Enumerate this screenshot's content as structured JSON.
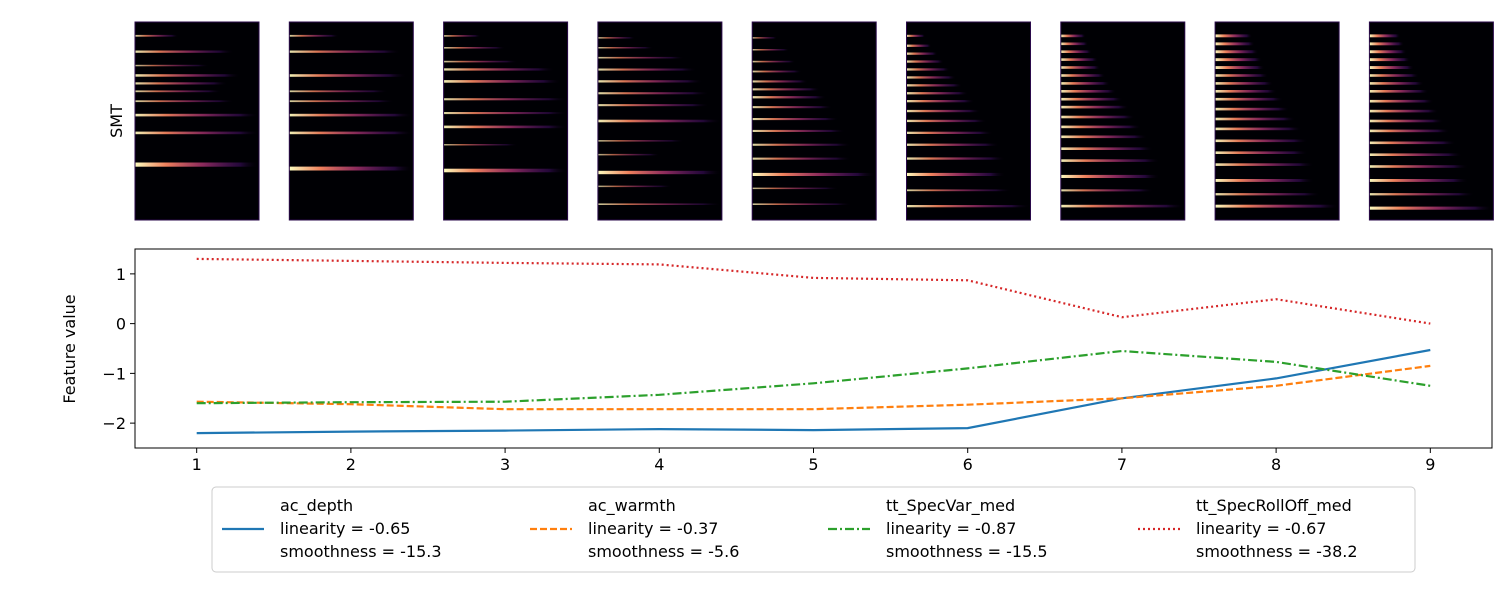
{
  "chart_data": [
    {
      "type": "heatmap",
      "ylabel": "SMT",
      "panels": [
        {
          "index": 1,
          "lines": [
            {
              "y": 0.93,
              "w": 0.35,
              "s": 0.7
            },
            {
              "y": 0.85,
              "w": 0.8,
              "s": 0.9
            },
            {
              "y": 0.78,
              "w": 0.6,
              "s": 0.5
            },
            {
              "y": 0.73,
              "w": 0.85,
              "s": 0.95
            },
            {
              "y": 0.69,
              "w": 0.75,
              "s": 0.85
            },
            {
              "y": 0.65,
              "w": 0.7,
              "s": 0.7
            },
            {
              "y": 0.6,
              "w": 0.8,
              "s": 0.7
            },
            {
              "y": 0.53,
              "w": 1.0,
              "s": 1.0
            },
            {
              "y": 0.44,
              "w": 1.0,
              "s": 1.0
            },
            {
              "y": 0.28,
              "w": 1.0,
              "s": 1.6
            }
          ]
        },
        {
          "index": 2,
          "lines": [
            {
              "y": 0.93,
              "w": 0.4,
              "s": 0.7
            },
            {
              "y": 0.85,
              "w": 0.9,
              "s": 0.9
            },
            {
              "y": 0.73,
              "w": 0.95,
              "s": 1.0
            },
            {
              "y": 0.65,
              "w": 0.8,
              "s": 0.7
            },
            {
              "y": 0.6,
              "w": 0.85,
              "s": 0.7
            },
            {
              "y": 0.53,
              "w": 1.0,
              "s": 1.0
            },
            {
              "y": 0.44,
              "w": 1.0,
              "s": 1.0
            },
            {
              "y": 0.26,
              "w": 1.0,
              "s": 1.5
            }
          ]
        },
        {
          "index": 3,
          "lines": [
            {
              "y": 0.93,
              "w": 0.3,
              "s": 0.6
            },
            {
              "y": 0.87,
              "w": 0.5,
              "s": 0.6
            },
            {
              "y": 0.8,
              "w": 0.6,
              "s": 0.6
            },
            {
              "y": 0.76,
              "w": 0.9,
              "s": 0.9
            },
            {
              "y": 0.7,
              "w": 0.95,
              "s": 1.0
            },
            {
              "y": 0.61,
              "w": 1.0,
              "s": 0.8
            },
            {
              "y": 0.54,
              "w": 1.0,
              "s": 0.8
            },
            {
              "y": 0.47,
              "w": 1.0,
              "s": 1.0
            },
            {
              "y": 0.38,
              "w": 0.6,
              "s": 0.4
            },
            {
              "y": 0.25,
              "w": 1.0,
              "s": 1.4
            }
          ]
        },
        {
          "index": 4,
          "lines": [
            {
              "y": 0.92,
              "w": 0.3,
              "s": 0.5
            },
            {
              "y": 0.87,
              "w": 0.45,
              "s": 0.5
            },
            {
              "y": 0.82,
              "w": 0.7,
              "s": 0.6
            },
            {
              "y": 0.76,
              "w": 0.8,
              "s": 0.8
            },
            {
              "y": 0.7,
              "w": 0.85,
              "s": 0.9
            },
            {
              "y": 0.64,
              "w": 0.9,
              "s": 0.8
            },
            {
              "y": 0.58,
              "w": 0.9,
              "s": 0.8
            },
            {
              "y": 0.5,
              "w": 1.0,
              "s": 1.0
            },
            {
              "y": 0.4,
              "w": 0.7,
              "s": 0.5
            },
            {
              "y": 0.33,
              "w": 0.5,
              "s": 0.4
            },
            {
              "y": 0.24,
              "w": 1.0,
              "s": 1.3
            },
            {
              "y": 0.17,
              "w": 0.6,
              "s": 0.4
            },
            {
              "y": 0.08,
              "w": 1.0,
              "s": 0.6
            }
          ]
        },
        {
          "index": 5,
          "lines": [
            {
              "y": 0.92,
              "w": 0.2,
              "s": 0.4
            },
            {
              "y": 0.86,
              "w": 0.3,
              "s": 0.5
            },
            {
              "y": 0.8,
              "w": 0.35,
              "s": 0.6
            },
            {
              "y": 0.75,
              "w": 0.4,
              "s": 0.7
            },
            {
              "y": 0.7,
              "w": 0.45,
              "s": 0.8
            },
            {
              "y": 0.66,
              "w": 0.55,
              "s": 0.8
            },
            {
              "y": 0.62,
              "w": 0.6,
              "s": 0.9
            },
            {
              "y": 0.57,
              "w": 0.65,
              "s": 0.8
            },
            {
              "y": 0.51,
              "w": 0.7,
              "s": 0.8
            },
            {
              "y": 0.45,
              "w": 0.75,
              "s": 0.8
            },
            {
              "y": 0.38,
              "w": 0.8,
              "s": 0.8
            },
            {
              "y": 0.31,
              "w": 0.8,
              "s": 0.8
            },
            {
              "y": 0.23,
              "w": 1.0,
              "s": 1.2
            },
            {
              "y": 0.16,
              "w": 0.7,
              "s": 0.5
            },
            {
              "y": 0.08,
              "w": 0.8,
              "s": 0.6
            }
          ]
        },
        {
          "index": 6,
          "lines": [
            {
              "y": 0.93,
              "w": 0.15,
              "s": 0.8
            },
            {
              "y": 0.88,
              "w": 0.2,
              "s": 0.9
            },
            {
              "y": 0.84,
              "w": 0.25,
              "s": 0.9
            },
            {
              "y": 0.8,
              "w": 0.3,
              "s": 0.9
            },
            {
              "y": 0.76,
              "w": 0.35,
              "s": 0.9
            },
            {
              "y": 0.72,
              "w": 0.4,
              "s": 0.9
            },
            {
              "y": 0.68,
              "w": 0.45,
              "s": 0.9
            },
            {
              "y": 0.64,
              "w": 0.5,
              "s": 0.9
            },
            {
              "y": 0.6,
              "w": 0.55,
              "s": 0.9
            },
            {
              "y": 0.55,
              "w": 0.6,
              "s": 0.9
            },
            {
              "y": 0.5,
              "w": 0.65,
              "s": 0.9
            },
            {
              "y": 0.44,
              "w": 0.7,
              "s": 0.9
            },
            {
              "y": 0.38,
              "w": 0.75,
              "s": 0.9
            },
            {
              "y": 0.31,
              "w": 0.8,
              "s": 0.9
            },
            {
              "y": 0.23,
              "w": 0.8,
              "s": 1.2
            },
            {
              "y": 0.15,
              "w": 0.85,
              "s": 0.7
            },
            {
              "y": 0.07,
              "w": 1.0,
              "s": 0.9
            }
          ]
        },
        {
          "index": 7,
          "lines": [
            {
              "y": 0.93,
              "w": 0.2,
              "s": 1.0
            },
            {
              "y": 0.89,
              "w": 0.22,
              "s": 1.0
            },
            {
              "y": 0.85,
              "w": 0.25,
              "s": 1.0
            },
            {
              "y": 0.81,
              "w": 0.3,
              "s": 1.0
            },
            {
              "y": 0.77,
              "w": 0.32,
              "s": 1.0
            },
            {
              "y": 0.73,
              "w": 0.36,
              "s": 1.0
            },
            {
              "y": 0.69,
              "w": 0.4,
              "s": 1.0
            },
            {
              "y": 0.65,
              "w": 0.45,
              "s": 1.0
            },
            {
              "y": 0.61,
              "w": 0.5,
              "s": 1.0
            },
            {
              "y": 0.57,
              "w": 0.55,
              "s": 1.0
            },
            {
              "y": 0.52,
              "w": 0.6,
              "s": 1.0
            },
            {
              "y": 0.47,
              "w": 0.65,
              "s": 1.0
            },
            {
              "y": 0.42,
              "w": 0.7,
              "s": 1.0
            },
            {
              "y": 0.36,
              "w": 0.75,
              "s": 1.0
            },
            {
              "y": 0.3,
              "w": 0.8,
              "s": 1.0
            },
            {
              "y": 0.22,
              "w": 0.8,
              "s": 1.2
            },
            {
              "y": 0.15,
              "w": 0.75,
              "s": 0.8
            },
            {
              "y": 0.07,
              "w": 1.0,
              "s": 1.0
            }
          ]
        },
        {
          "index": 8,
          "lines": [
            {
              "y": 0.93,
              "w": 0.3,
              "s": 1.1
            },
            {
              "y": 0.89,
              "w": 0.32,
              "s": 1.1
            },
            {
              "y": 0.85,
              "w": 0.35,
              "s": 1.1
            },
            {
              "y": 0.81,
              "w": 0.38,
              "s": 1.1
            },
            {
              "y": 0.77,
              "w": 0.4,
              "s": 1.1
            },
            {
              "y": 0.73,
              "w": 0.43,
              "s": 1.0
            },
            {
              "y": 0.69,
              "w": 0.47,
              "s": 1.0
            },
            {
              "y": 0.65,
              "w": 0.5,
              "s": 1.0
            },
            {
              "y": 0.61,
              "w": 0.55,
              "s": 1.0
            },
            {
              "y": 0.56,
              "w": 0.6,
              "s": 1.0
            },
            {
              "y": 0.51,
              "w": 0.65,
              "s": 1.0
            },
            {
              "y": 0.46,
              "w": 0.7,
              "s": 1.0
            },
            {
              "y": 0.4,
              "w": 0.75,
              "s": 1.0
            },
            {
              "y": 0.34,
              "w": 0.75,
              "s": 1.0
            },
            {
              "y": 0.28,
              "w": 0.8,
              "s": 1.0
            },
            {
              "y": 0.2,
              "w": 0.8,
              "s": 1.1
            },
            {
              "y": 0.13,
              "w": 0.85,
              "s": 0.9
            },
            {
              "y": 0.07,
              "w": 1.0,
              "s": 1.1
            }
          ]
        },
        {
          "index": 9,
          "lines": [
            {
              "y": 0.93,
              "w": 0.25,
              "s": 1.1
            },
            {
              "y": 0.89,
              "w": 0.28,
              "s": 1.1
            },
            {
              "y": 0.85,
              "w": 0.3,
              "s": 1.1
            },
            {
              "y": 0.81,
              "w": 0.33,
              "s": 1.1
            },
            {
              "y": 0.77,
              "w": 0.36,
              "s": 1.1
            },
            {
              "y": 0.73,
              "w": 0.4,
              "s": 1.0
            },
            {
              "y": 0.69,
              "w": 0.44,
              "s": 1.0
            },
            {
              "y": 0.65,
              "w": 0.48,
              "s": 1.0
            },
            {
              "y": 0.6,
              "w": 0.52,
              "s": 1.0
            },
            {
              "y": 0.55,
              "w": 0.56,
              "s": 1.0
            },
            {
              "y": 0.5,
              "w": 0.6,
              "s": 1.0
            },
            {
              "y": 0.45,
              "w": 0.65,
              "s": 1.0
            },
            {
              "y": 0.39,
              "w": 0.7,
              "s": 1.0
            },
            {
              "y": 0.33,
              "w": 0.75,
              "s": 1.0
            },
            {
              "y": 0.27,
              "w": 0.8,
              "s": 1.0
            },
            {
              "y": 0.2,
              "w": 0.8,
              "s": 1.1
            },
            {
              "y": 0.13,
              "w": 0.85,
              "s": 0.9
            },
            {
              "y": 0.06,
              "w": 1.0,
              "s": 1.2
            }
          ]
        }
      ]
    },
    {
      "type": "line",
      "xlabel": "",
      "ylabel": "Feature value",
      "x": [
        1,
        2,
        3,
        4,
        5,
        6,
        7,
        8,
        9
      ],
      "xlim": [
        0.6,
        9.4
      ],
      "ylim": [
        -2.5,
        1.5
      ],
      "xticks": [
        1,
        2,
        3,
        4,
        5,
        6,
        7,
        8,
        9
      ],
      "yticks": [
        -2,
        -1,
        0,
        1
      ],
      "ytick_labels": [
        "−2",
        "−1",
        "0",
        "1"
      ],
      "grid": false,
      "legend_position": "bottom",
      "series": [
        {
          "name": "ac_depth",
          "linearity": "linearity = -0.65",
          "smoothness": "smoothness = -15.3",
          "color": "#1f77b4",
          "dash": "solid",
          "values": [
            -2.2,
            -2.17,
            -2.15,
            -2.12,
            -2.14,
            -2.1,
            -1.5,
            -1.1,
            -0.53
          ]
        },
        {
          "name": "ac_warmth",
          "linearity": "linearity = -0.37",
          "smoothness": "smoothness = -5.6",
          "color": "#ff7f0e",
          "dash": "dashed",
          "values": [
            -1.57,
            -1.62,
            -1.72,
            -1.72,
            -1.72,
            -1.63,
            -1.5,
            -1.25,
            -0.85
          ]
        },
        {
          "name": "tt_SpecVar_med",
          "linearity": "linearity = -0.87",
          "smoothness": "smoothness = -15.5",
          "color": "#2ca02c",
          "dash": "dashdot",
          "values": [
            -1.6,
            -1.58,
            -1.57,
            -1.43,
            -1.2,
            -0.9,
            -0.55,
            -0.77,
            -1.25
          ]
        },
        {
          "name": "tt_SpecRollOff_med",
          "linearity": "linearity = -0.67",
          "smoothness": "smoothness = -38.2",
          "color": "#d62728",
          "dash": "dotted",
          "values": [
            1.3,
            1.26,
            1.22,
            1.19,
            0.92,
            0.87,
            0.13,
            0.49,
            0.0
          ]
        }
      ]
    }
  ]
}
